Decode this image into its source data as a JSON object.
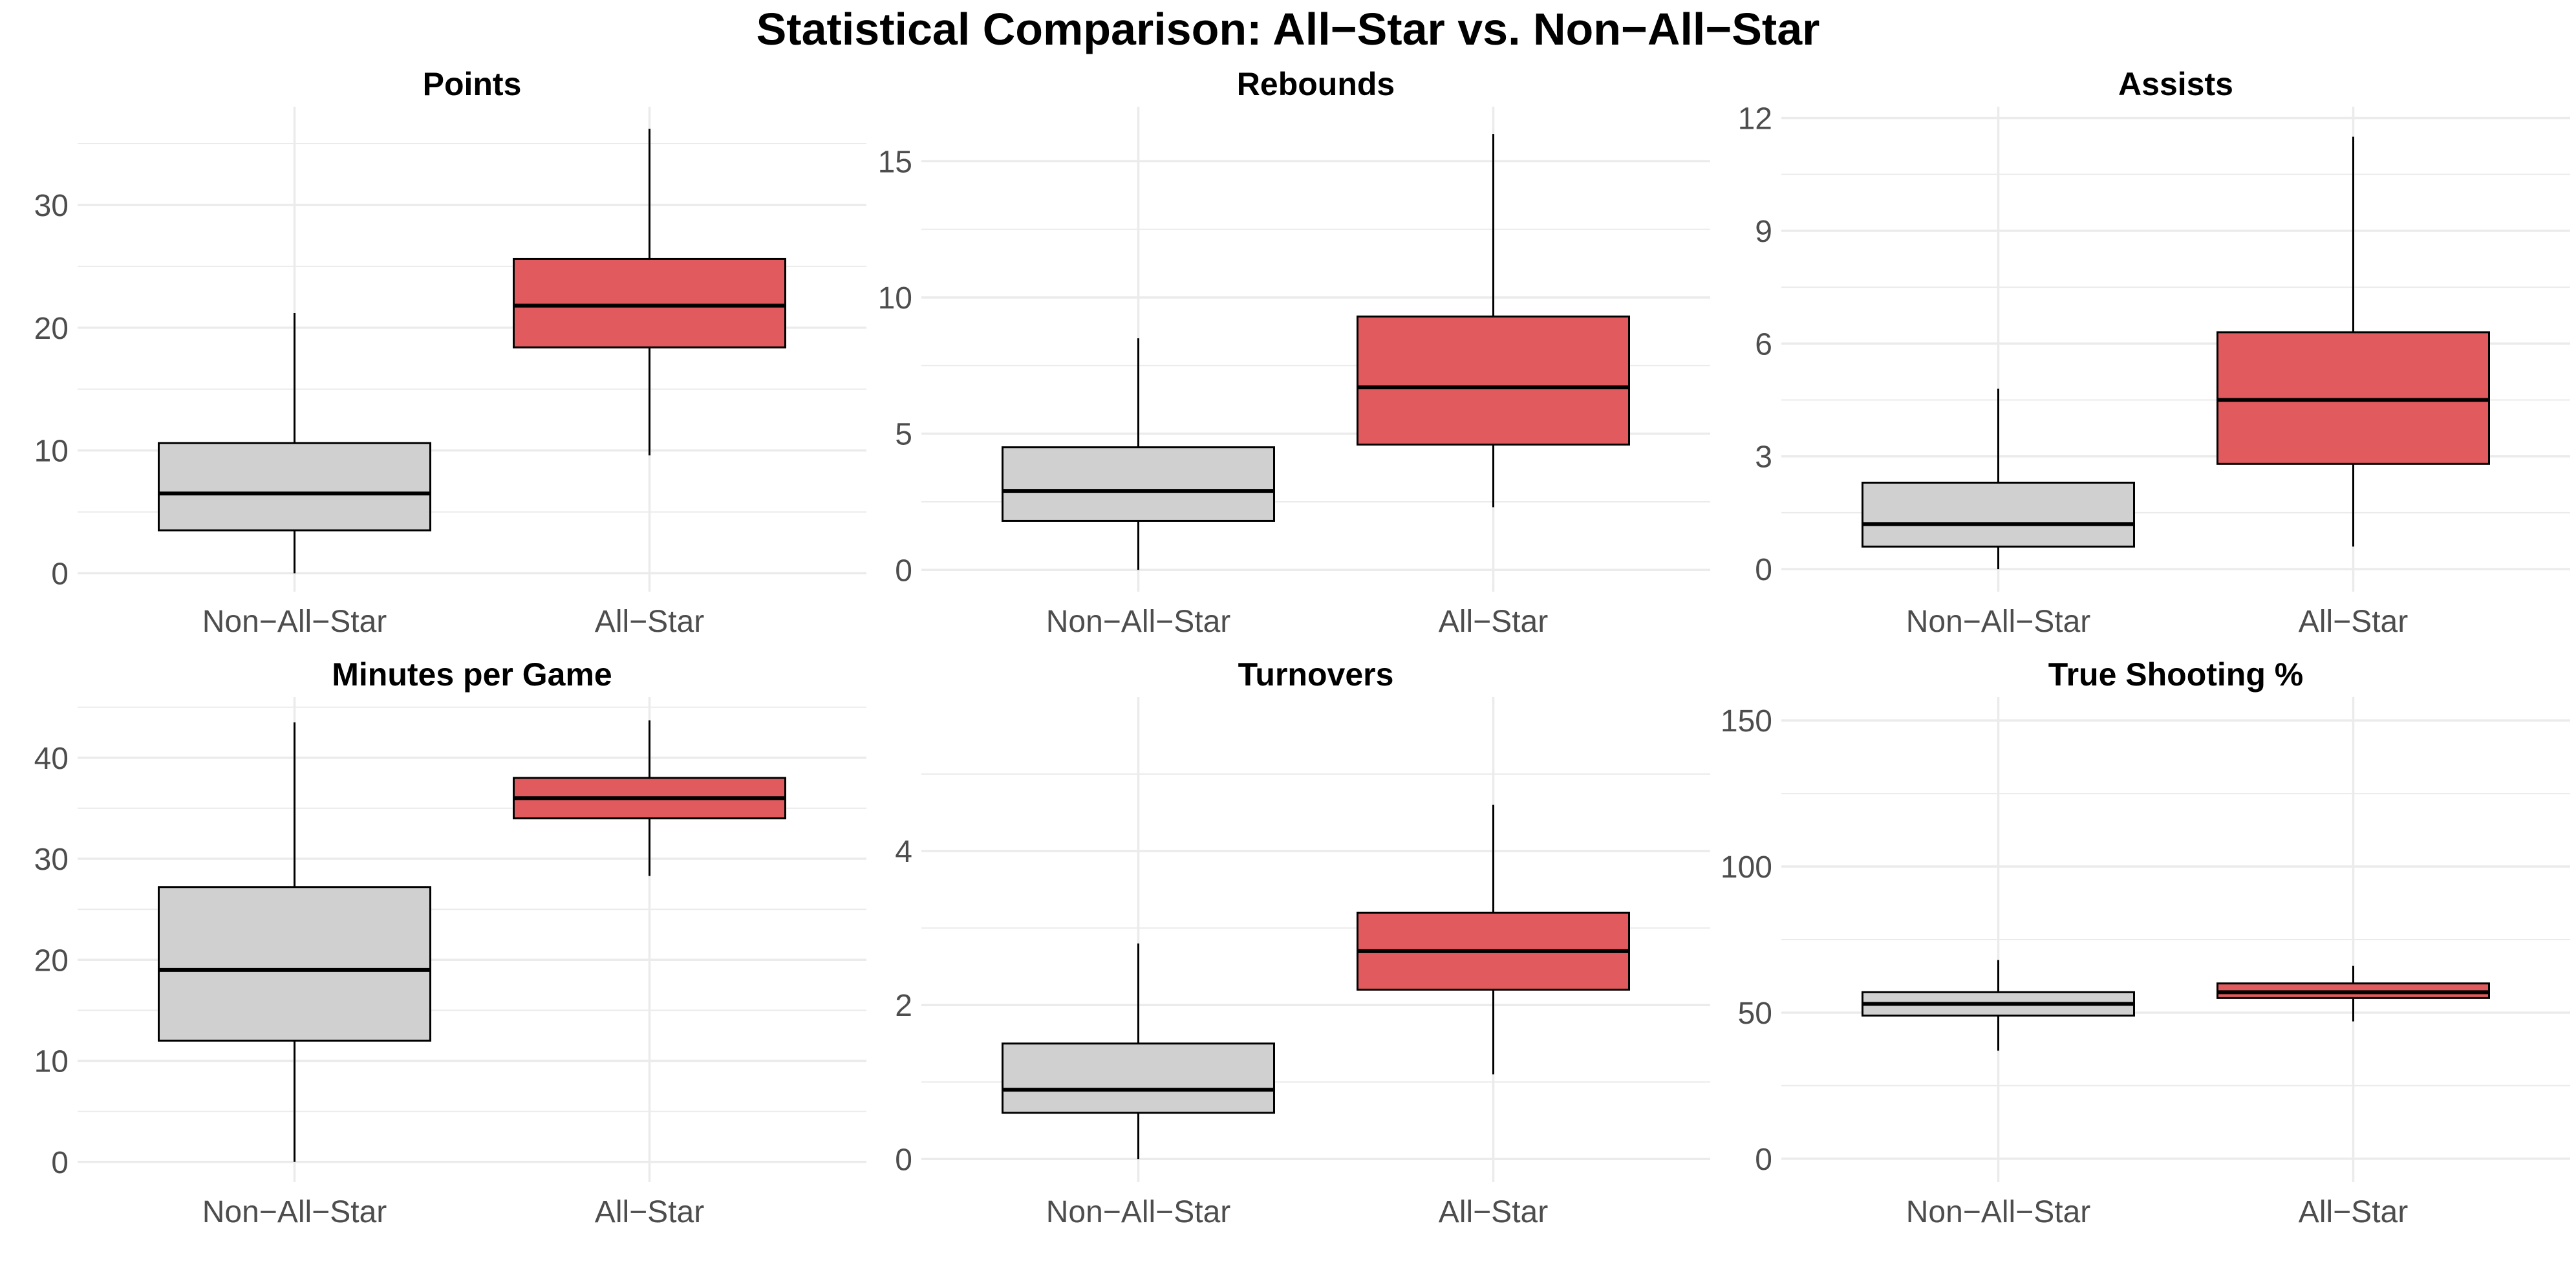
{
  "title": "Statistical Comparison: All−Star vs. Non−All−Star",
  "colors": {
    "non_all_star_fill": "#d0d0d0",
    "all_star_fill": "#e05a5e",
    "box_outline": "#000000",
    "grid": "#ebebeb",
    "tick_text": "#4d4d4d"
  },
  "chart_data": [
    {
      "type": "box",
      "title": "Points",
      "categories": [
        "Non−All−Star",
        "All−Star"
      ],
      "ylim": [
        -1.5,
        38
      ],
      "yticks": [
        0,
        10,
        20,
        30
      ],
      "grid": true,
      "boxes": [
        {
          "name": "Non−All−Star",
          "min": 0,
          "q1": 3.5,
          "median": 6.5,
          "q3": 10.6,
          "max": 21.2
        },
        {
          "name": "All−Star",
          "min": 9.6,
          "q1": 18.4,
          "median": 21.8,
          "q3": 25.6,
          "max": 36.2
        }
      ]
    },
    {
      "type": "box",
      "title": "Rebounds",
      "categories": [
        "Non−All−Star",
        "All−Star"
      ],
      "ylim": [
        -0.8,
        17
      ],
      "yticks": [
        0,
        5,
        10,
        15
      ],
      "grid": true,
      "boxes": [
        {
          "name": "Non−All−Star",
          "min": 0,
          "q1": 1.8,
          "median": 2.9,
          "q3": 4.5,
          "max": 8.5
        },
        {
          "name": "All−Star",
          "min": 2.3,
          "q1": 4.6,
          "median": 6.7,
          "q3": 9.3,
          "max": 16.0
        }
      ]
    },
    {
      "type": "box",
      "title": "Assists",
      "categories": [
        "Non−All−Star",
        "All−Star"
      ],
      "ylim": [
        -0.6,
        12.3
      ],
      "yticks": [
        0,
        3,
        6,
        9,
        12
      ],
      "grid": true,
      "boxes": [
        {
          "name": "Non−All−Star",
          "min": 0,
          "q1": 0.6,
          "median": 1.2,
          "q3": 2.3,
          "max": 4.8
        },
        {
          "name": "All−Star",
          "min": 0.6,
          "q1": 2.8,
          "median": 4.5,
          "q3": 6.3,
          "max": 11.5
        }
      ]
    },
    {
      "type": "box",
      "title": "Minutes per Game",
      "categories": [
        "Non−All−Star",
        "All−Star"
      ],
      "ylim": [
        -2,
        46
      ],
      "yticks": [
        0,
        10,
        20,
        30,
        40
      ],
      "grid": true,
      "boxes": [
        {
          "name": "Non−All−Star",
          "min": 0,
          "q1": 12,
          "median": 19,
          "q3": 27.2,
          "max": 43.5
        },
        {
          "name": "All−Star",
          "min": 28.3,
          "q1": 34,
          "median": 36,
          "q3": 38,
          "max": 43.7
        }
      ]
    },
    {
      "type": "box",
      "title": "Turnovers",
      "categories": [
        "Non−All−Star",
        "All−Star"
      ],
      "ylim": [
        -0.3,
        6
      ],
      "yticks": [
        0,
        2,
        4
      ],
      "grid": true,
      "boxes": [
        {
          "name": "Non−All−Star",
          "min": 0,
          "q1": 0.6,
          "median": 0.9,
          "q3": 1.5,
          "max": 2.8
        },
        {
          "name": "All−Star",
          "min": 1.1,
          "q1": 2.2,
          "median": 2.7,
          "q3": 3.2,
          "max": 4.6
        }
      ]
    },
    {
      "type": "box",
      "title": "True Shooting %",
      "categories": [
        "Non−All−Star",
        "All−Star"
      ],
      "ylim": [
        -8,
        158
      ],
      "yticks": [
        0,
        50,
        100,
        150
      ],
      "grid": true,
      "boxes": [
        {
          "name": "Non−All−Star",
          "min": 37,
          "q1": 49,
          "median": 53,
          "q3": 57,
          "max": 68
        },
        {
          "name": "All−Star",
          "min": 47,
          "q1": 55,
          "median": 57,
          "q3": 60,
          "max": 66
        }
      ]
    }
  ]
}
